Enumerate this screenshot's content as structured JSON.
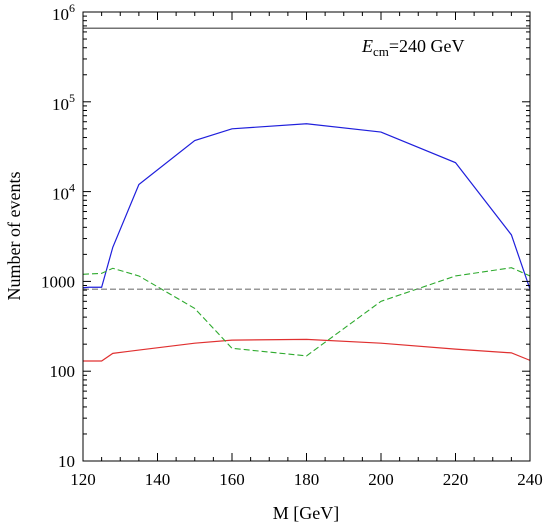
{
  "chart_data": {
    "type": "line",
    "xlabel": "M [GeV]",
    "ylabel": "Number of events",
    "xlim": [
      120,
      240
    ],
    "ylim": [
      10,
      1000000
    ],
    "y_scale": "log",
    "grid": false,
    "x_ticks": [
      120,
      140,
      160,
      180,
      200,
      220,
      240
    ],
    "x_tick_labels": [
      "120",
      "140",
      "160",
      "180",
      "200",
      "220",
      "240"
    ],
    "y_ticks": [
      {
        "value": 10,
        "label": "10",
        "mantissa": "10",
        "exponent": ""
      },
      {
        "value": 100,
        "label": "100",
        "mantissa": "100",
        "exponent": ""
      },
      {
        "value": 1000,
        "label": "1000",
        "mantissa": "1000",
        "exponent": ""
      },
      {
        "value": 10000,
        "label": "10^4",
        "mantissa": "10",
        "exponent": "4"
      },
      {
        "value": 100000,
        "label": "10^5",
        "mantissa": "10",
        "exponent": "5"
      },
      {
        "value": 1000000,
        "label": "10^6",
        "mantissa": "10",
        "exponent": "6"
      }
    ],
    "annotation": {
      "symbol": "E",
      "subscript": "cm",
      "text": "=240 GeV"
    },
    "series": [
      {
        "color": "#1f1fdc",
        "style": "solid",
        "points": [
          [
            120,
            850
          ],
          [
            121.5,
            860
          ],
          [
            125,
            860
          ],
          [
            128,
            2400
          ],
          [
            135,
            12000
          ],
          [
            150,
            37000
          ],
          [
            160,
            50000
          ],
          [
            180,
            57000
          ],
          [
            200,
            46000
          ],
          [
            220,
            21000
          ],
          [
            235,
            3300
          ],
          [
            240,
            820
          ]
        ]
      },
      {
        "color": "#e03030",
        "style": "solid",
        "points": [
          [
            120,
            130
          ],
          [
            125,
            130
          ],
          [
            128,
            158
          ],
          [
            135,
            172
          ],
          [
            150,
            205
          ],
          [
            160,
            222
          ],
          [
            180,
            226
          ],
          [
            200,
            205
          ],
          [
            220,
            176
          ],
          [
            235,
            160
          ],
          [
            240,
            132
          ]
        ]
      },
      {
        "color": "#2eaa2e",
        "style": "dashed",
        "points": [
          [
            120,
            1200
          ],
          [
            125,
            1230
          ],
          [
            128,
            1400
          ],
          [
            135,
            1150
          ],
          [
            150,
            500
          ],
          [
            160,
            180
          ],
          [
            180,
            148
          ],
          [
            200,
            600
          ],
          [
            220,
            1150
          ],
          [
            235,
            1420
          ],
          [
            240,
            1150
          ]
        ]
      },
      {
        "color": "#777777",
        "style": "dashed",
        "points": [
          [
            120,
            820
          ],
          [
            240,
            820
          ]
        ]
      },
      {
        "color": "#444444",
        "style": "solid",
        "points": [
          [
            120,
            660000
          ],
          [
            240,
            660000
          ]
        ]
      }
    ]
  }
}
